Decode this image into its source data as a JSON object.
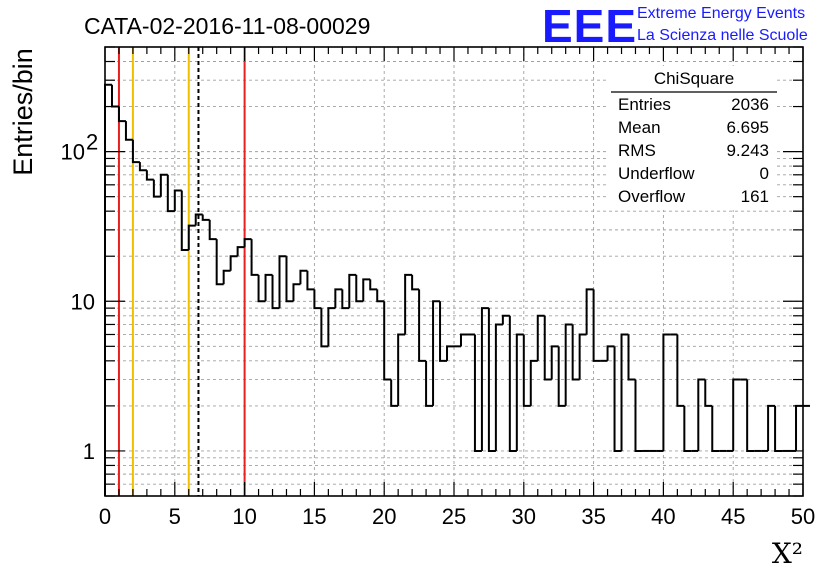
{
  "chart_data": {
    "type": "bar",
    "histtype": "step",
    "title": "CATA-02-2016-11-08-00029",
    "xlabel": "X²",
    "ylabel": "Entries/bin",
    "xlim": [
      0,
      50
    ],
    "ylim": [
      0.5,
      500
    ],
    "yscale": "log",
    "grid": true,
    "bin_width": 0.5,
    "x_ticks": [
      "0",
      "5",
      "10",
      "15",
      "20",
      "25",
      "30",
      "35",
      "40",
      "45",
      "50"
    ],
    "y_ticks": [
      {
        "value": 1,
        "base": "1",
        "exp": ""
      },
      {
        "value": 10,
        "base": "10",
        "exp": ""
      },
      {
        "value": 100,
        "base": "10",
        "exp": "2"
      }
    ],
    "values": [
      280,
      200,
      160,
      120,
      85,
      75,
      65,
      50,
      70,
      40,
      55,
      22,
      32,
      38,
      35,
      26,
      13,
      16,
      20,
      23,
      26,
      15,
      10,
      15,
      9,
      20,
      10,
      13,
      16,
      12,
      9,
      5,
      9,
      12,
      9,
      15,
      10,
      14,
      12,
      10,
      3,
      2,
      6,
      15,
      12,
      4,
      2,
      10,
      4,
      5,
      5,
      6,
      6,
      1,
      9,
      1,
      7,
      8,
      1,
      6,
      2,
      4,
      8,
      3,
      5,
      2,
      7,
      3,
      6,
      12,
      4,
      4,
      5,
      1,
      6,
      3,
      1,
      1,
      1,
      1,
      6,
      6,
      2,
      1,
      1,
      3,
      2,
      1,
      1,
      1,
      3,
      3,
      1,
      1,
      1,
      2,
      1,
      1,
      1,
      2,
      2
    ],
    "vertical_lines": [
      {
        "x": 1,
        "color": "#e8201e",
        "style": "solid"
      },
      {
        "x": 2,
        "color": "#f0c000",
        "style": "solid"
      },
      {
        "x": 6,
        "color": "#f0c000",
        "style": "solid"
      },
      {
        "x": 6.695,
        "color": "#000000",
        "style": "dashed"
      },
      {
        "x": 10,
        "color": "#e8201e",
        "style": "solid"
      }
    ],
    "stats_box": {
      "title": "ChiSquare",
      "rows": [
        {
          "label": "Entries",
          "value": "2036"
        },
        {
          "label": "Mean",
          "value": "6.695"
        },
        {
          "label": "RMS",
          "value": "9.243"
        },
        {
          "label": "Underflow",
          "value": "0"
        },
        {
          "label": "Overflow",
          "value": "161"
        }
      ]
    },
    "colors": {
      "histogram": "#000000",
      "grid": "#a0a0a0",
      "logo": "#1a1aff"
    }
  },
  "logo": {
    "mark": "EEE",
    "line1": "Extreme Energy Events",
    "line2": "La Scienza nelle Scuole"
  }
}
